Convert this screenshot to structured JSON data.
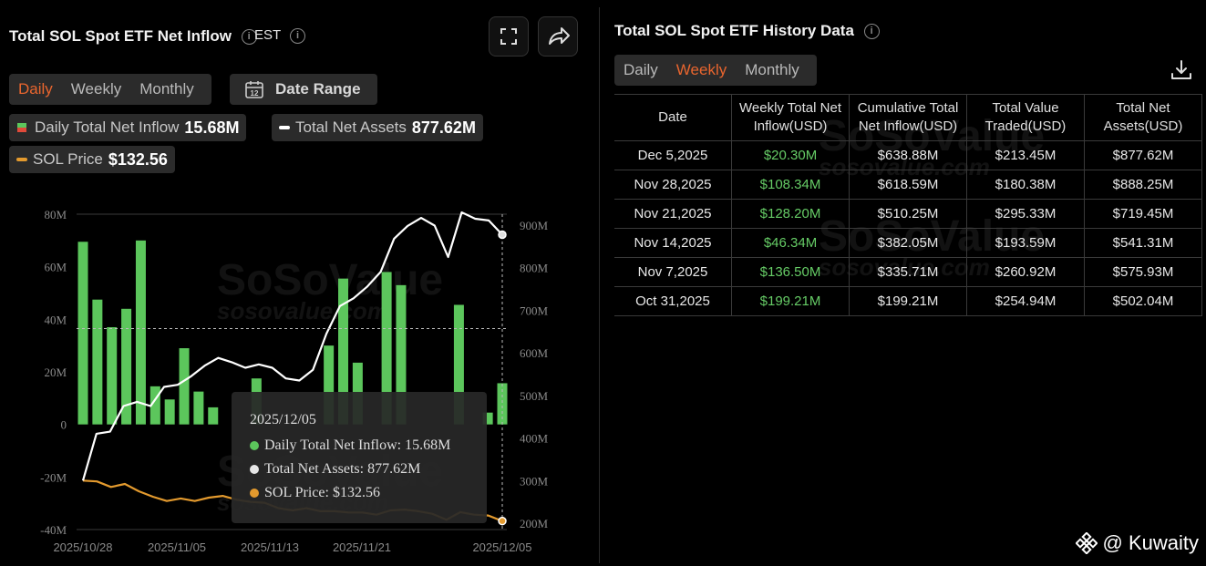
{
  "left": {
    "title": "Total SOL Spot ETF Net Inflow",
    "timezone": "EST",
    "tabs": [
      "Daily",
      "Weekly",
      "Monthly"
    ],
    "active_tab": "Daily",
    "date_range_label": "Date Range",
    "date_range_icon_day": "12",
    "legend": {
      "inflow_label": "Daily Total Net Inflow",
      "inflow_value": "15.68M",
      "assets_label": "Total Net Assets",
      "assets_value": "877.62M",
      "price_label": "SOL Price",
      "price_value": "$132.56"
    },
    "tooltip": {
      "date": "2025/12/05",
      "inflow": "Daily Total Net Inflow: 15.68M",
      "assets": "Total Net Assets: 877.62M",
      "price": "SOL Price: $132.56"
    }
  },
  "right": {
    "title": "Total SOL Spot ETF History Data",
    "tabs": [
      "Daily",
      "Weekly",
      "Monthly"
    ],
    "active_tab": "Weekly",
    "table": {
      "headers": [
        "Date",
        "Weekly Total Net Inflow(USD)",
        "Cumulative Total Net Inflow(USD)",
        "Total Value Traded(USD)",
        "Total Net Assets(USD)"
      ],
      "rows": [
        [
          "Dec 5,2025",
          "$20.30M",
          "$638.88M",
          "$213.45M",
          "$877.62M"
        ],
        [
          "Nov 28,2025",
          "$108.34M",
          "$618.59M",
          "$180.38M",
          "$888.25M"
        ],
        [
          "Nov 21,2025",
          "$128.20M",
          "$510.25M",
          "$295.33M",
          "$719.45M"
        ],
        [
          "Nov 14,2025",
          "$46.34M",
          "$382.05M",
          "$193.59M",
          "$541.31M"
        ],
        [
          "Nov 7,2025",
          "$136.50M",
          "$335.71M",
          "$260.92M",
          "$575.93M"
        ],
        [
          "Oct 31,2025",
          "$199.21M",
          "$199.21M",
          "$254.94M",
          "$502.04M"
        ]
      ]
    }
  },
  "watermark": {
    "brand": "SoSoValue",
    "url": "sosovalue.com"
  },
  "credit": "@ Kuwaity",
  "colors": {
    "accent": "#e8652e",
    "inflow": "#5cc65c",
    "assets": "#ffffff",
    "price": "#e39a2e",
    "positive": "#66cc66"
  },
  "chart_data": {
    "type": "bar",
    "x_tick_labels": [
      "2025/10/28",
      "2025/11/05",
      "2025/11/13",
      "2025/11/21",
      "2025/12/05"
    ],
    "left_axis": {
      "ticks": [
        "80M",
        "60M",
        "40M",
        "20M",
        "0",
        "-20M",
        "-40M"
      ],
      "range": [
        -40,
        80
      ]
    },
    "right_axis": {
      "ticks": [
        "900M",
        "800M",
        "700M",
        "600M",
        "500M",
        "400M",
        "300M",
        "200M"
      ],
      "range": [
        200,
        950
      ]
    },
    "series": [
      {
        "name": "Daily Total Net Inflow",
        "type": "bar",
        "axis": "left",
        "values": [
          69.5,
          47.5,
          37,
          44,
          70,
          14.5,
          9.5,
          29,
          12.5,
          6.5,
          0,
          0,
          17.5,
          0,
          0,
          0,
          0,
          30,
          55.5,
          23.5,
          0,
          58,
          53,
          0,
          0,
          0,
          45.5,
          0,
          4.5,
          15.68
        ]
      },
      {
        "name": "Total Net Assets",
        "type": "line",
        "axis": "right",
        "values": [
          300,
          410,
          415,
          475,
          485,
          475,
          520,
          525,
          545,
          570,
          588,
          578,
          565,
          573,
          565,
          540,
          535,
          560,
          645,
          710,
          728,
          755,
          790,
          868,
          898,
          917,
          899,
          825,
          930,
          915,
          911,
          877.62
        ]
      },
      {
        "name": "SOL Price",
        "type": "line",
        "axis": "right",
        "values": [
          300,
          298,
          285,
          292,
          275,
          262,
          252,
          258,
          252,
          260,
          264,
          255,
          250,
          248,
          235,
          230,
          235,
          228,
          228,
          225,
          225,
          220,
          230,
          232,
          228,
          222,
          208,
          226,
          220,
          218,
          205
        ]
      }
    ]
  }
}
